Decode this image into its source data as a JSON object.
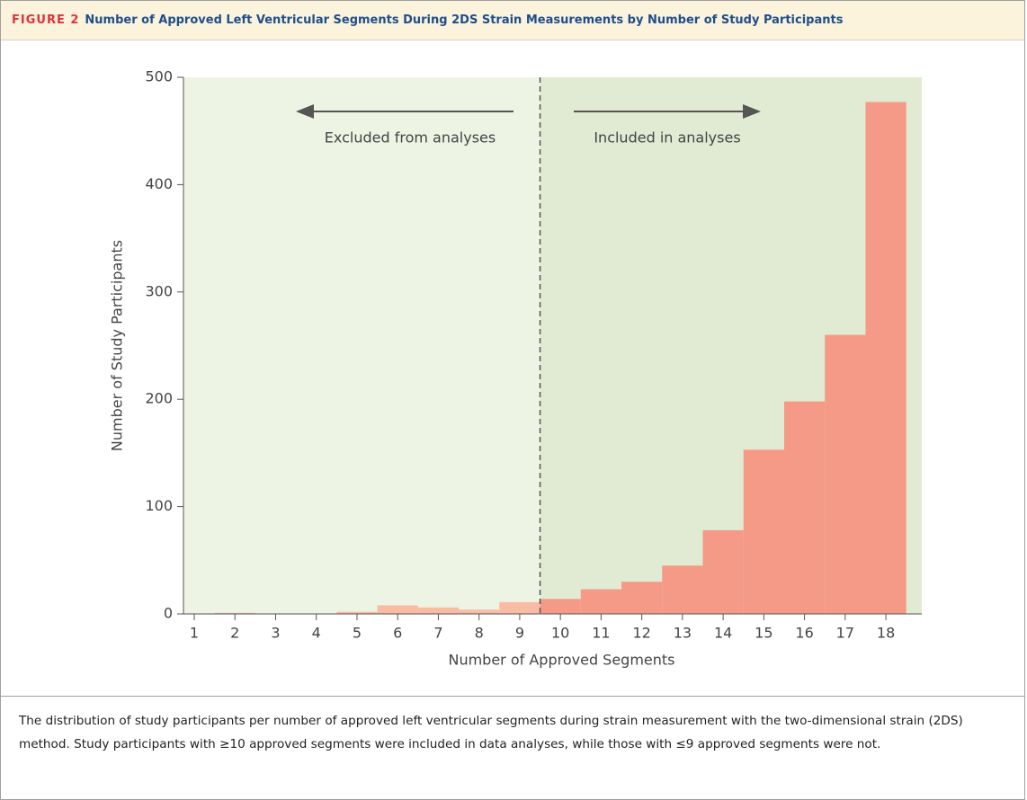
{
  "figure": {
    "label": "FIGURE 2",
    "title": "Number of Approved Left Ventricular Segments During 2DS Strain Measurements by Number of Study Participants"
  },
  "chart_data": {
    "type": "bar",
    "categories": [
      "1",
      "2",
      "3",
      "4",
      "5",
      "6",
      "7",
      "8",
      "9",
      "10",
      "11",
      "12",
      "13",
      "14",
      "15",
      "16",
      "17",
      "18"
    ],
    "values": [
      0,
      1,
      0,
      0,
      2,
      8,
      6,
      4,
      11,
      14,
      23,
      30,
      45,
      78,
      153,
      198,
      260,
      477
    ],
    "colors": [
      "#f8bca5",
      "#f8bca5",
      "#f8bca5",
      "#f8bca5",
      "#f8bca5",
      "#f8bca5",
      "#f8bca5",
      "#f8bca5",
      "#f8bca5",
      "#f49a86",
      "#f49a86",
      "#f49a86",
      "#f49a86",
      "#f49a86",
      "#f49a86",
      "#f49a86",
      "#f49a86",
      "#f49a86"
    ],
    "cutoff": 9.5,
    "region_colors": [
      "#eef4e4",
      "#e1ebd3"
    ],
    "xlabel": "Number of Approved Segments",
    "ylabel": "Number of Study Participants",
    "ylim": [
      0,
      500
    ],
    "yticks": [
      0,
      100,
      200,
      300,
      400,
      500
    ],
    "annotations": [
      "Excluded from analyses",
      "Included in analyses"
    ]
  },
  "caption": "The distribution of study participants per number of approved left ventricular segments during strain measurement with the two-dimensional strain (2DS) method. Study participants with ≥10 approved segments were included in data analyses, while those with ≤9 approved segments were not."
}
